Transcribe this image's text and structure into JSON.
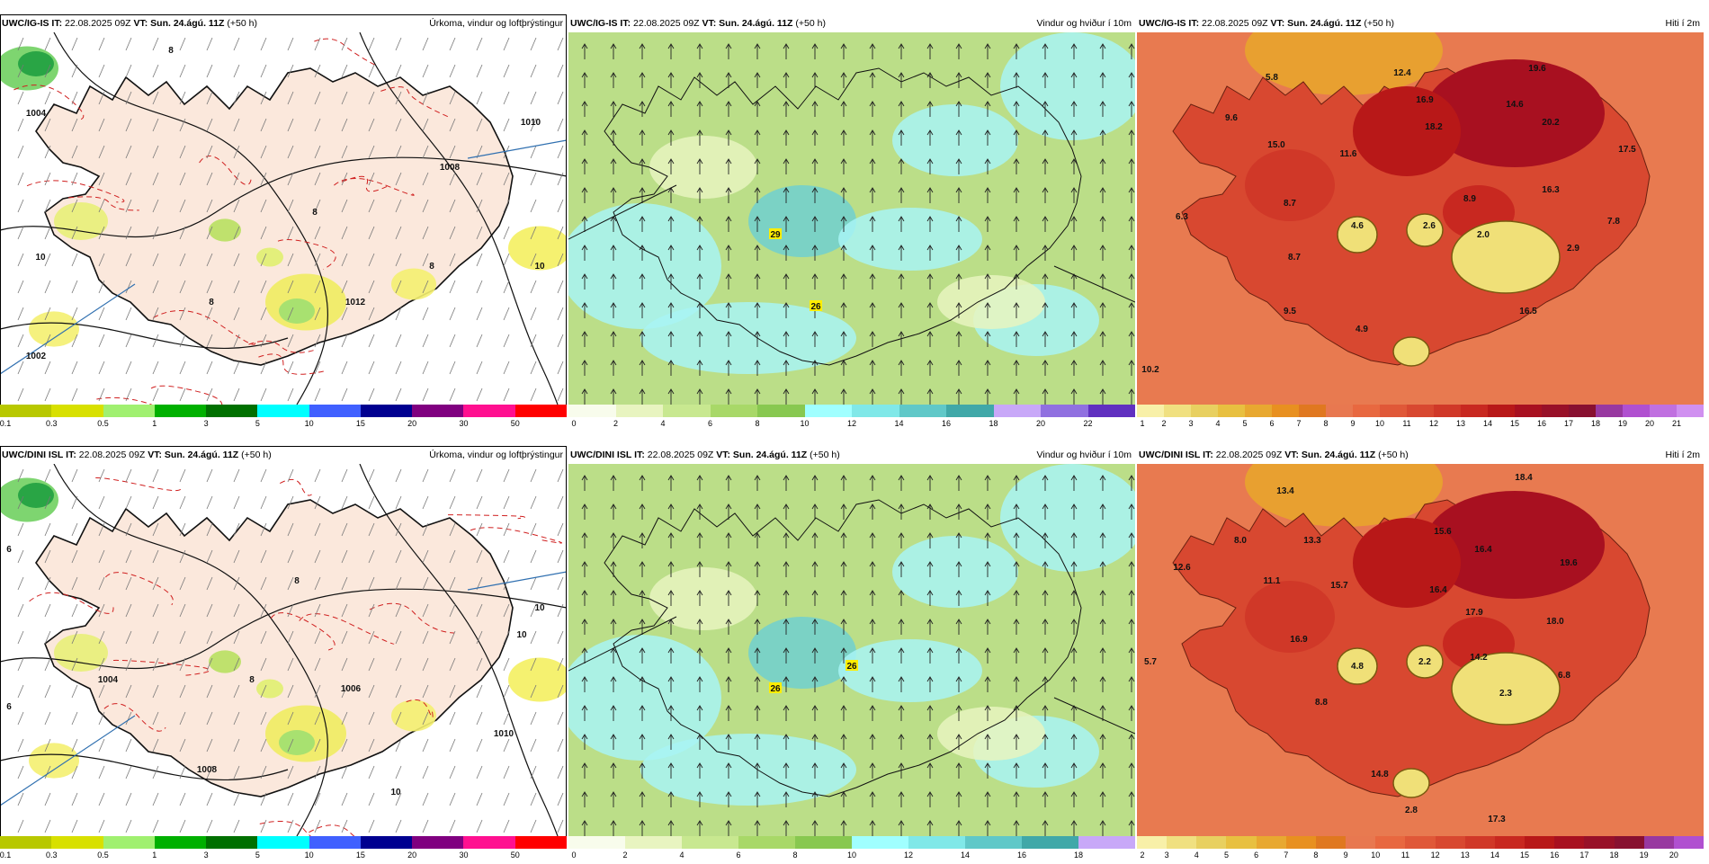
{
  "rows": [
    {
      "model": "UWC/IG-IS",
      "panels": [
        {
          "id": "precip",
          "title": "Úrkoma, vindur og loftþrýstingur",
          "palette": "precip",
          "ticks": [
            "0.1",
            "0.3",
            "0.5",
            "1",
            "3",
            "5",
            "10",
            "15",
            "20",
            "30",
            "50"
          ],
          "map_labels": [
            "1004",
            "1008",
            "1010",
            "1012",
            "1002",
            "8",
            "8",
            "8",
            "10",
            "8",
            "10"
          ]
        },
        {
          "id": "wind",
          "title": "Vindur og hviður í 10m",
          "palette": "wind",
          "ticks": [
            "0",
            "2",
            "4",
            "6",
            "8",
            "10",
            "12",
            "14",
            "16",
            "18",
            "20",
            "22"
          ],
          "map_labels": [
            "29",
            "26"
          ]
        },
        {
          "id": "temp",
          "title": "Hiti í 2m",
          "palette": "temp",
          "ticks": [
            "1",
            "2",
            "3",
            "4",
            "5",
            "6",
            "7",
            "8",
            "9",
            "10",
            "11",
            "12",
            "13",
            "14",
            "15",
            "16",
            "17",
            "18",
            "19",
            "20",
            "21"
          ],
          "map_labels": [
            "19.6",
            "12.4",
            "5.8",
            "16.9",
            "14.6",
            "9.6",
            "18.2",
            "20.2",
            "15.0",
            "11.6",
            "17.5",
            "16.3",
            "8.7",
            "8.9",
            "6.3",
            "4.6",
            "2.6",
            "7.8",
            "2.0",
            "2.9",
            "8.7",
            "9.5",
            "16.5",
            "4.9",
            "10.2"
          ]
        }
      ]
    },
    {
      "model": "UWC/DINI ISL",
      "panels": [
        {
          "id": "precip",
          "title": "Úrkoma, vindur og loftþrýstingur",
          "palette": "precip",
          "ticks": [
            "0.1",
            "0.3",
            "0.5",
            "1",
            "3",
            "5",
            "10",
            "15",
            "20",
            "30",
            "50"
          ],
          "map_labels": [
            "1004",
            "1008",
            "1010",
            "1006",
            "8",
            "8",
            "10",
            "6",
            "10",
            "6",
            "10"
          ]
        },
        {
          "id": "wind",
          "title": "Vindur og hviður í 10m",
          "palette": "wind",
          "ticks": [
            "0",
            "2",
            "4",
            "6",
            "8",
            "10",
            "12",
            "14",
            "16",
            "18"
          ],
          "map_labels": [
            "26",
            "26"
          ]
        },
        {
          "id": "temp",
          "title": "Hiti í 2m",
          "palette": "temp",
          "ticks": [
            "2",
            "3",
            "4",
            "5",
            "6",
            "7",
            "8",
            "9",
            "10",
            "11",
            "12",
            "13",
            "14",
            "15",
            "16",
            "17",
            "18",
            "19",
            "20"
          ],
          "map_labels": [
            "18.4",
            "13.4",
            "8.0",
            "13.3",
            "15.6",
            "12.6",
            "16.4",
            "19.6",
            "11.1",
            "15.7",
            "16.4",
            "17.9",
            "18.0",
            "16.9",
            "5.7",
            "4.8",
            "2.2",
            "14.2",
            "6.8",
            "2.3",
            "8.8",
            "14.8",
            "17.3",
            "2.8"
          ]
        }
      ]
    }
  ],
  "header_common": {
    "it_label": "IT:",
    "it_value": "22.08.2025 09Z",
    "vt_label": "VT:",
    "vt_value": "Sun. 24.ágú. 11Z",
    "lead": "(+50 h)"
  },
  "palettes": {
    "precip": [
      "#b8c800",
      "#d8e000",
      "#a0f070",
      "#00b000",
      "#007000",
      "#00ffff",
      "#4060ff",
      "#000090",
      "#800080",
      "#ff1090",
      "#ff0000"
    ],
    "wind": [
      "#f8fcec",
      "#e8f4c0",
      "#c8e890",
      "#a8d868",
      "#88c850",
      "#a0ffff",
      "#80e8e8",
      "#60c8c8",
      "#40a8a8",
      "#c8a8f8",
      "#9070e0",
      "#6030c0"
    ],
    "temp": [
      "#f8f0a8",
      "#f0e080",
      "#e8d060",
      "#e8c040",
      "#e8a830",
      "#e89020",
      "#e07820",
      "#e87850",
      "#e86840",
      "#e05838",
      "#d84830",
      "#d03828",
      "#c82820",
      "#b81818",
      "#a81020",
      "#981028",
      "#881030",
      "#9838a0",
      "#b050d0",
      "#c070e0",
      "#d090f0"
    ],
    "land_precip": "#fbe8dc",
    "sea_precip": "#ffffff",
    "wind_bg": "#a8d070",
    "temp_bg": "#e87a50"
  }
}
